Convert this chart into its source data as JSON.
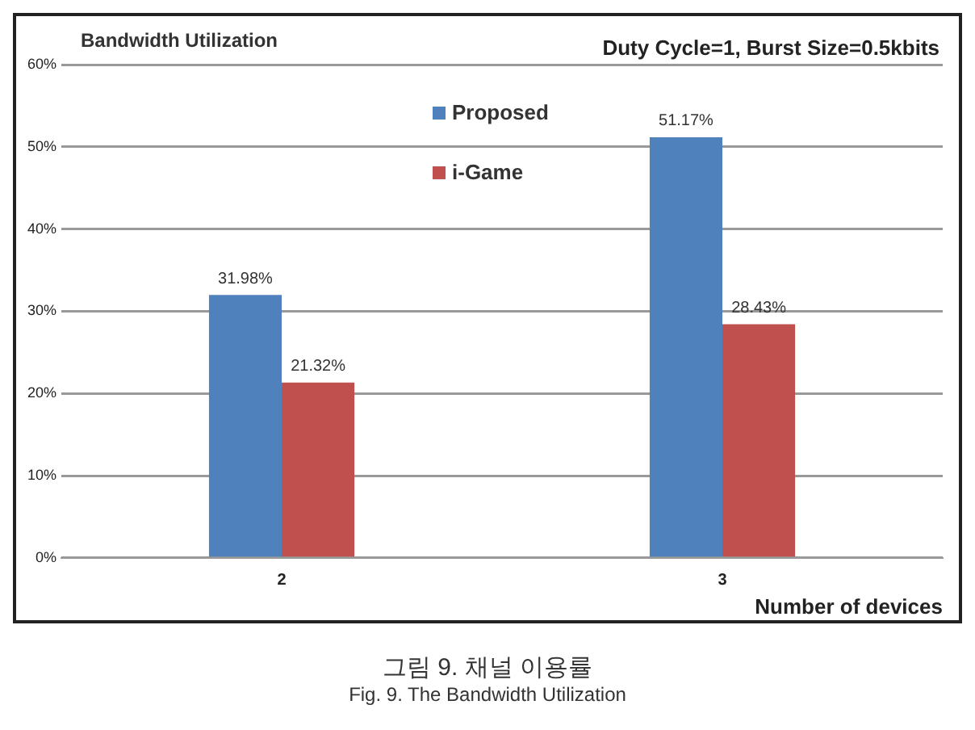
{
  "chart_data": {
    "type": "bar",
    "title": "Bandwidth Utilization",
    "subtitle": "Duty Cycle=1, Burst Size=0.5kbits",
    "xlabel": "Number of devices",
    "categories": [
      "2",
      "3"
    ],
    "series": [
      {
        "name": "Proposed",
        "color": "#4f81bd",
        "values": [
          31.98,
          51.17
        ],
        "value_labels": [
          "31.98%",
          "51.17%"
        ]
      },
      {
        "name": "i-Game",
        "color": "#c0504d",
        "values": [
          21.32,
          28.43
        ],
        "value_labels": [
          "21.32%",
          "28.43%"
        ]
      }
    ],
    "ylim": [
      0,
      60
    ],
    "yticks": [
      {
        "value": 0,
        "label": "0%"
      },
      {
        "value": 10,
        "label": "10%"
      },
      {
        "value": 20,
        "label": "20%"
      },
      {
        "value": 30,
        "label": "30%"
      },
      {
        "value": 40,
        "label": "40%"
      },
      {
        "value": 50,
        "label": "50%"
      },
      {
        "value": 60,
        "label": "60%"
      }
    ],
    "grid": "y",
    "legend": "top",
    "annotations": [
      "그림 9. 채널 이용률",
      "Fig. 9. The Bandwidth Utilization"
    ]
  }
}
